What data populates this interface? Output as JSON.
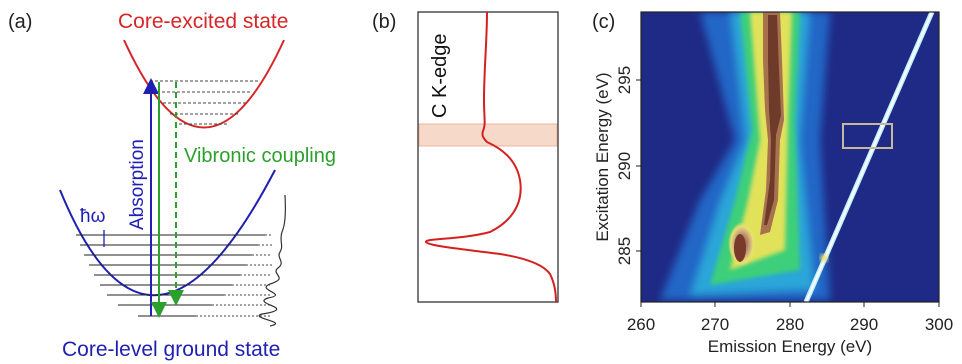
{
  "panel_a": {
    "label": "(a)",
    "excited_label": "Core-excited state",
    "ground_label": "Core-level ground state",
    "absorption_label": "Absorption",
    "vibronic_label": "Vibronic coupling",
    "hbar_omega_label": "ħω",
    "colors": {
      "excited": "#d62728",
      "ground": "#1f1fb4",
      "green": "#2ca02c",
      "lines": "#222222"
    }
  },
  "panel_b": {
    "label": "(b)",
    "edge_label": "C K-edge",
    "colors": {
      "curve": "#d62020",
      "band": "#f6d9c8"
    }
  },
  "panel_c": {
    "label": "(c)",
    "xlabel": "Emission Energy (eV)",
    "ylabel": "Excitation Energy (eV)",
    "x_ticks": [
      "260",
      "270",
      "280",
      "290",
      "300"
    ],
    "y_ticks": [
      "285",
      "290",
      "295"
    ],
    "colors": {
      "background": "#1f2a86",
      "box": "#c8b89a"
    }
  },
  "chart_data": {
    "type": "heatmap",
    "title": "",
    "xlabel": "Emission Energy (eV)",
    "ylabel": "Excitation Energy (eV)",
    "xlim": [
      260,
      300
    ],
    "ylim": [
      282,
      299
    ],
    "x_ticks": [
      260,
      270,
      280,
      290,
      300
    ],
    "y_ticks": [
      285,
      290,
      295
    ]
  }
}
